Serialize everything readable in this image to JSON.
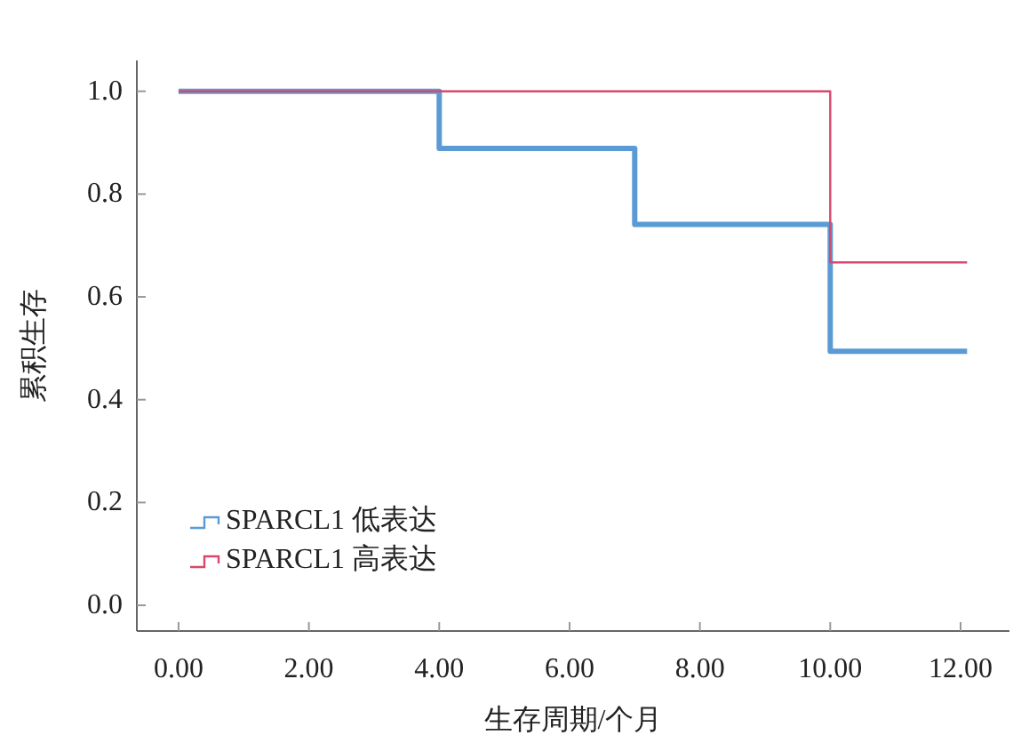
{
  "chart_data": {
    "type": "step",
    "xlabel": "生存周期/个月",
    "ylabel": "累积生存",
    "xlim": [
      -0.64,
      12.75
    ],
    "xticks": [
      {
        "value": 0,
        "label": "0.00"
      },
      {
        "value": 2,
        "label": "2.00"
      },
      {
        "value": 4,
        "label": "4.00"
      },
      {
        "value": 6,
        "label": "6.00"
      },
      {
        "value": 8,
        "label": "8.00"
      },
      {
        "value": 10,
        "label": "10.00"
      },
      {
        "value": 12,
        "label": "12.00"
      }
    ],
    "ylim": [
      -0.05,
      1.06
    ],
    "yticks": [
      {
        "value": 0,
        "label": "0.0"
      },
      {
        "value": 0.2,
        "label": "0.2"
      },
      {
        "value": 0.4,
        "label": "0.4"
      },
      {
        "value": 0.6,
        "label": "0.6"
      },
      {
        "value": 0.8,
        "label": "0.8"
      },
      {
        "value": 1,
        "label": "1.0"
      }
    ],
    "grid": false,
    "legend": "bottom left",
    "series": [
      {
        "name": "SPARCL1 低表达",
        "color": "#5b9bd5",
        "x": [
          0,
          4,
          7,
          10,
          12.1
        ],
        "values": [
          1,
          0.889,
          0.741,
          0.494,
          0.494
        ]
      },
      {
        "name": "SPARCL1 高表达",
        "color": "#d9476a",
        "x": [
          0,
          10,
          12.1
        ],
        "values": [
          1,
          0.667,
          0.667
        ]
      }
    ]
  }
}
